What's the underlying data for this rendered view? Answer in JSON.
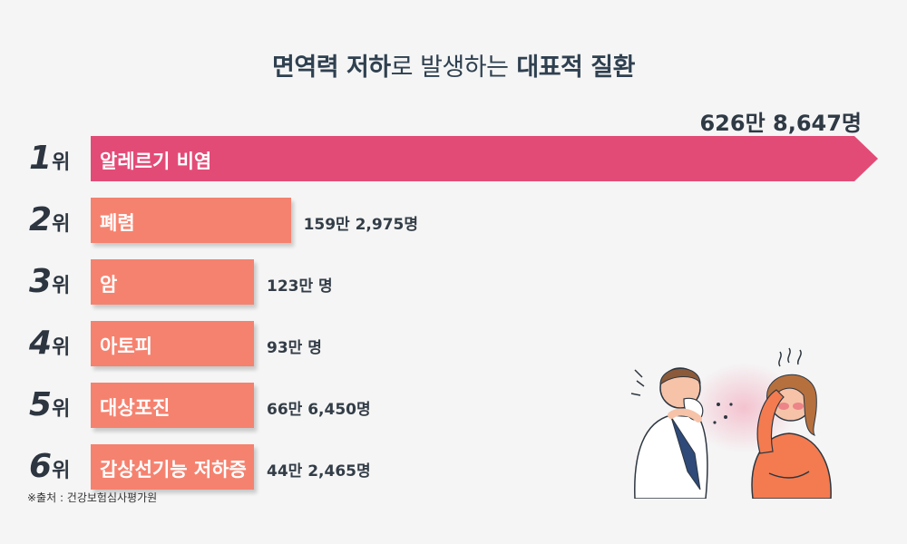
{
  "title": {
    "part1": "면역력 저하",
    "part2": "로 발생하는",
    "part3": " 대표적 질환"
  },
  "rank_unit": "위",
  "source": "※출처 : 건강보험심사평가원",
  "colors": {
    "primary": "#e34b77",
    "secondary": "#f5826f"
  },
  "chart_data": {
    "type": "bar",
    "orientation": "horizontal",
    "title": "면역력 저하로 발생하는 대표적 질환",
    "categories": [
      "알레르기 비염",
      "폐렴",
      "암",
      "아토피",
      "대상포진",
      "갑상선기능 저하증"
    ],
    "ranks": [
      "1",
      "2",
      "3",
      "4",
      "5",
      "6"
    ],
    "values": [
      6268647,
      1592975,
      1230000,
      930000,
      666450,
      442465
    ],
    "value_labels": [
      "626만 8,647명",
      "159만 2,975명",
      "123만 명",
      "93만 명",
      "66만 6,450명",
      "44만 2,465명"
    ],
    "xlabel": "",
    "ylabel": ""
  }
}
